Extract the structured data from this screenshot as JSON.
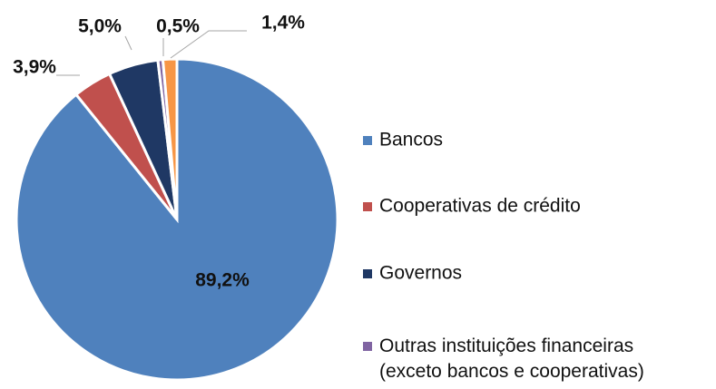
{
  "chart_data": {
    "type": "pie",
    "categories": [
      "Bancos",
      "Cooperativas de crédito",
      "Governos",
      "Outras instituições financeiras\n(exceto bancos e cooperativas)",
      null
    ],
    "values": [
      89.2,
      3.9,
      5.0,
      0.5,
      1.4
    ],
    "value_labels": [
      "89,2%",
      "3,9%",
      "5,0%",
      "0,5%",
      "1,4%"
    ],
    "colors": [
      "#4f81bd",
      "#c0504d",
      "#1f3864",
      "#8064a2",
      "#f79646"
    ],
    "legend": "right"
  }
}
